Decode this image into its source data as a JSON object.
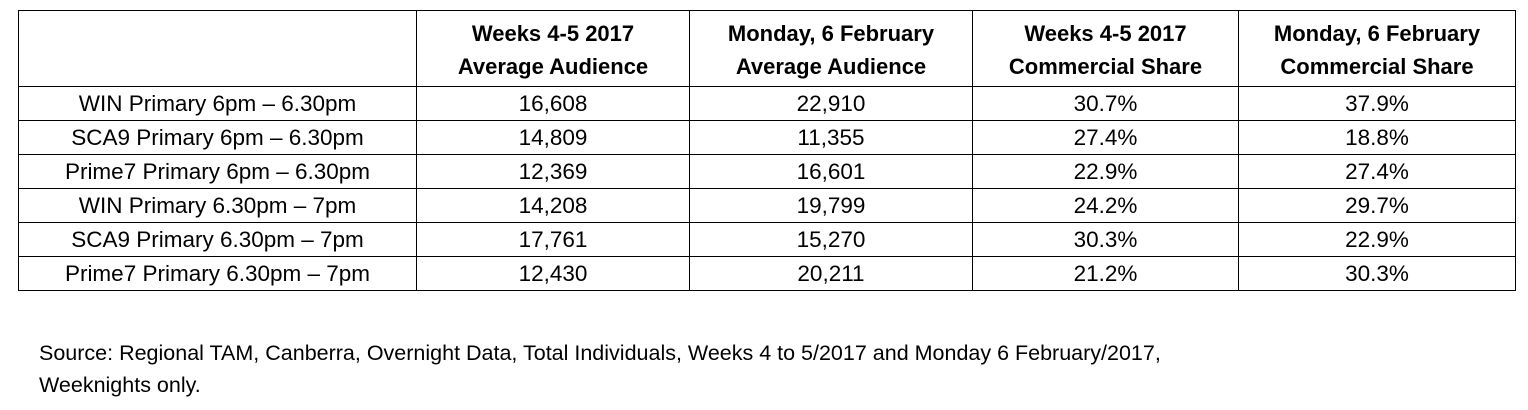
{
  "table": {
    "headers": [
      {
        "line1": "",
        "line2": ""
      },
      {
        "line1": "Weeks 4-5 2017",
        "line2": "Average Audience"
      },
      {
        "line1": "Monday, 6 February",
        "line2": "Average Audience"
      },
      {
        "line1": "Weeks 4-5 2017",
        "line2": "Commercial Share"
      },
      {
        "line1": "Monday, 6 February",
        "line2": "Commercial Share"
      }
    ],
    "rows": [
      [
        "WIN Primary 6pm – 6.30pm",
        "16,608",
        "22,910",
        "30.7%",
        "37.9%"
      ],
      [
        "SCA9 Primary 6pm – 6.30pm",
        "14,809",
        "11,355",
        "27.4%",
        "18.8%"
      ],
      [
        "Prime7 Primary 6pm – 6.30pm",
        "12,369",
        "16,601",
        "22.9%",
        "27.4%"
      ],
      [
        "WIN Primary 6.30pm – 7pm",
        "14,208",
        "19,799",
        "24.2%",
        "29.7%"
      ],
      [
        "SCA9 Primary 6.30pm – 7pm",
        "17,761",
        "15,270",
        "30.3%",
        "22.9%"
      ],
      [
        "Prime7 Primary 6.30pm – 7pm",
        "12,430",
        "20,211",
        "21.2%",
        "30.3%"
      ]
    ]
  },
  "source": {
    "line1": "Source: Regional TAM, Canberra, Overnight Data, Total Individuals, Weeks 4 to 5/2017 and Monday 6 February/2017,",
    "line2": "Weeknights only."
  }
}
